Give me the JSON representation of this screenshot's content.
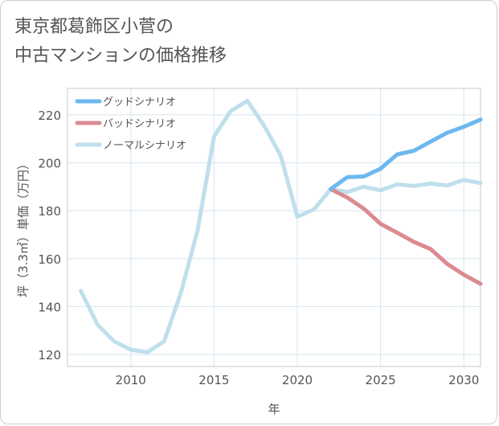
{
  "page": {
    "title_line1": "東京都葛飾区小菅の",
    "title_line2": "中古マンションの価格推移"
  },
  "chart_data": {
    "type": "line",
    "xlabel": "年",
    "ylabel": "坪（3.3㎡）単価（万円）",
    "xlim": [
      2006.2,
      2031
    ],
    "ylim": [
      115,
      231
    ],
    "xticks": [
      2010,
      2015,
      2020,
      2025,
      2030
    ],
    "yticks": [
      120,
      140,
      160,
      180,
      200,
      220
    ],
    "grid": true,
    "legend_position": "top-left",
    "series": [
      {
        "name": "グッドシナリオ",
        "color": "#6cb8ef",
        "x": [
          2022,
          2023,
          2024,
          2025,
          2026,
          2027,
          2028,
          2029,
          2030,
          2031
        ],
        "y": [
          189,
          194,
          194.3,
          197.5,
          203.5,
          205,
          208.8,
          212.5,
          215,
          218
        ]
      },
      {
        "name": "バッドシナリオ",
        "color": "#dc8a92",
        "x": [
          2022,
          2023,
          2024,
          2025,
          2026,
          2027,
          2028,
          2029,
          2030,
          2031
        ],
        "y": [
          189,
          185.5,
          180.8,
          174.5,
          170.8,
          167,
          164,
          157.8,
          153.3,
          149.5
        ]
      },
      {
        "name": "ノーマルシナリオ",
        "color": "#bfdfec",
        "x": [
          2007,
          2008,
          2009,
          2010,
          2011,
          2012,
          2013,
          2014,
          2015,
          2016,
          2017,
          2018,
          2019,
          2020,
          2021,
          2022,
          2023,
          2024,
          2025,
          2026,
          2027,
          2028,
          2029,
          2030,
          2031
        ],
        "y": [
          146.5,
          132.5,
          125.5,
          122,
          121,
          125.5,
          145.5,
          171.5,
          211,
          221.5,
          225.8,
          215.5,
          203,
          177.5,
          180.5,
          189,
          187.8,
          190,
          188.5,
          191,
          190.3,
          191.3,
          190.5,
          192.8,
          191.5
        ]
      }
    ]
  }
}
